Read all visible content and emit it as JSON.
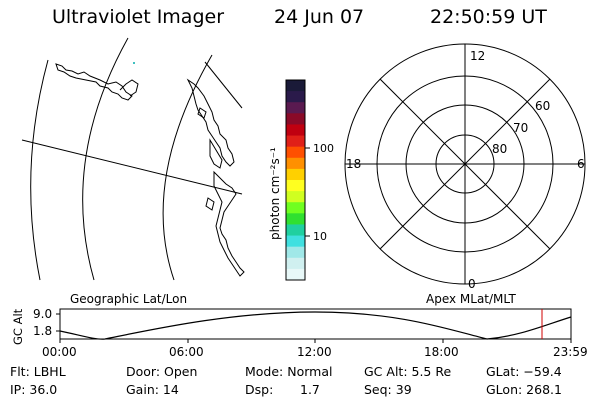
{
  "header": {
    "title": "Ultraviolet Imager",
    "date": "24 Jun 07",
    "time": "22:50:59 UT"
  },
  "colorbar": {
    "label": "photon cm⁻²s⁻¹",
    "tick_labels": [
      "100",
      "10"
    ],
    "colors": [
      "#1a1a38",
      "#2a1a4a",
      "#5a1a50",
      "#8a0a28",
      "#c00010",
      "#e02018",
      "#ff5000",
      "#ff9000",
      "#ffd000",
      "#ffff20",
      "#d0ff20",
      "#70ff20",
      "#30e030",
      "#20d0a0",
      "#40e0e0",
      "#a0e8e8",
      "#d0f0f0",
      "#e8f8f8"
    ]
  },
  "map_labels": {
    "geographic": "Geographic Lat/Lon",
    "apex": "Apex MLat/MLT"
  },
  "polar": {
    "mlt_labels": [
      "12",
      "18",
      "6",
      "0"
    ],
    "lat_labels": [
      "60",
      "70",
      "80"
    ]
  },
  "timeline": {
    "y_axis_label": "GC Alt",
    "y_ticks": [
      "9.0",
      "1.8"
    ],
    "x_ticks": [
      "00:00",
      "06:00",
      "12:00",
      "18:00",
      "23:59"
    ],
    "marker_time": "22:50:59",
    "marker_color": "#d00000"
  },
  "status": {
    "row1": {
      "flt": "Flt: LBHL",
      "door": "Door: Open",
      "mode": "Mode: Normal",
      "gcalt": "GC Alt: 5.5 Re",
      "glat": "GLat: −59.4"
    },
    "row2": {
      "ip": "IP: 36.0",
      "gain": "Gain: 14",
      "dsp_label": "Dsp:",
      "dsp_value": "1.7",
      "seq": "Seq: 39",
      "glon": "GLon: 268.1"
    }
  }
}
